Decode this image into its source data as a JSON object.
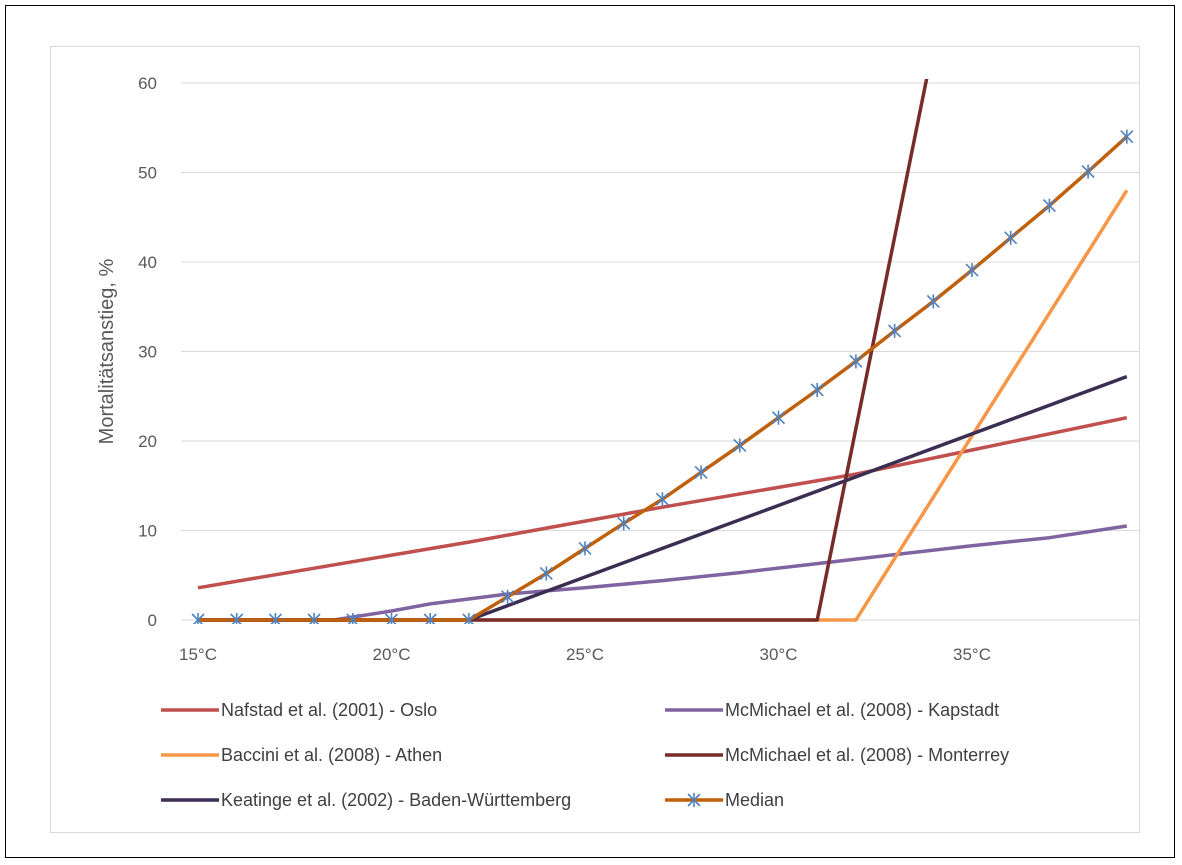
{
  "chart_data": {
    "type": "line",
    "title": "",
    "xlabel": "",
    "ylabel": "Mortalitätsanstieg, %",
    "x": [
      15,
      16,
      17,
      18,
      19,
      20,
      21,
      22,
      23,
      24,
      25,
      26,
      27,
      28,
      29,
      30,
      31,
      32,
      33,
      34,
      35,
      36,
      37,
      38,
      39
    ],
    "x_tick_labels": [
      "15°C",
      "20°C",
      "25°C",
      "30°C",
      "35°C"
    ],
    "x_tick_values": [
      15,
      20,
      25,
      30,
      35
    ],
    "y_tick_values": [
      0,
      10,
      20,
      30,
      40,
      50,
      60
    ],
    "ylim": [
      0,
      60
    ],
    "grid": "horizontal",
    "legend_position": "bottom",
    "series": [
      {
        "name": "Nafstad et al. (2001) - Oslo",
        "color": "#c0504d",
        "marker": "none",
        "points": [
          [
            15,
            3.6
          ],
          [
            22,
            8.7
          ],
          [
            27,
            12.6
          ],
          [
            32,
            16.3
          ],
          [
            35,
            19.0
          ],
          [
            39,
            22.6
          ]
        ]
      },
      {
        "name": "McMichael et al. (2008) - Kapstadt",
        "color": "#8064a2",
        "marker": "none",
        "points": [
          [
            15,
            0
          ],
          [
            18.5,
            0
          ],
          [
            20,
            1.0
          ],
          [
            21,
            1.8
          ],
          [
            23,
            2.9
          ],
          [
            25,
            3.6
          ],
          [
            27,
            4.4
          ],
          [
            29,
            5.3
          ],
          [
            31,
            6.3
          ],
          [
            32,
            6.8
          ],
          [
            35,
            8.3
          ],
          [
            37,
            9.2
          ],
          [
            39,
            10.5
          ]
        ]
      },
      {
        "name": "Baccini et al. (2008) - Athen",
        "color": "#f79646",
        "marker": "none",
        "points": [
          [
            15,
            0
          ],
          [
            32,
            0
          ],
          [
            39,
            48
          ]
        ]
      },
      {
        "name": "McMichael et al. (2008) - Monterrey",
        "color": "#772c2a",
        "marker": "none",
        "points": [
          [
            15,
            0
          ],
          [
            31,
            0
          ],
          [
            33.9,
            62
          ]
        ]
      },
      {
        "name": "Keatinge et al. (2002) - Baden-Württemberg",
        "color": "#3b2e52",
        "marker": "none",
        "points": [
          [
            15,
            0
          ],
          [
            22,
            0
          ],
          [
            39,
            27.2
          ]
        ]
      },
      {
        "name": "Median",
        "color": "#c0600b",
        "marker": "asterisk",
        "marker_color": "#4f81bd",
        "points": [
          [
            15,
            0
          ],
          [
            16,
            0
          ],
          [
            17,
            0
          ],
          [
            18,
            0
          ],
          [
            19,
            0
          ],
          [
            20,
            0
          ],
          [
            21,
            0
          ],
          [
            22,
            0
          ],
          [
            23,
            2.6
          ],
          [
            24,
            5.2
          ],
          [
            25,
            8.0
          ],
          [
            26,
            10.8
          ],
          [
            27,
            13.5
          ],
          [
            28,
            16.5
          ],
          [
            29,
            19.5
          ],
          [
            30,
            22.6
          ],
          [
            31,
            25.7
          ],
          [
            32,
            28.9
          ],
          [
            33,
            32.3
          ],
          [
            34,
            35.6
          ],
          [
            35,
            39.1
          ],
          [
            36,
            42.7
          ],
          [
            37,
            46.3
          ],
          [
            38,
            50.1
          ],
          [
            39,
            54.0
          ]
        ]
      }
    ]
  }
}
